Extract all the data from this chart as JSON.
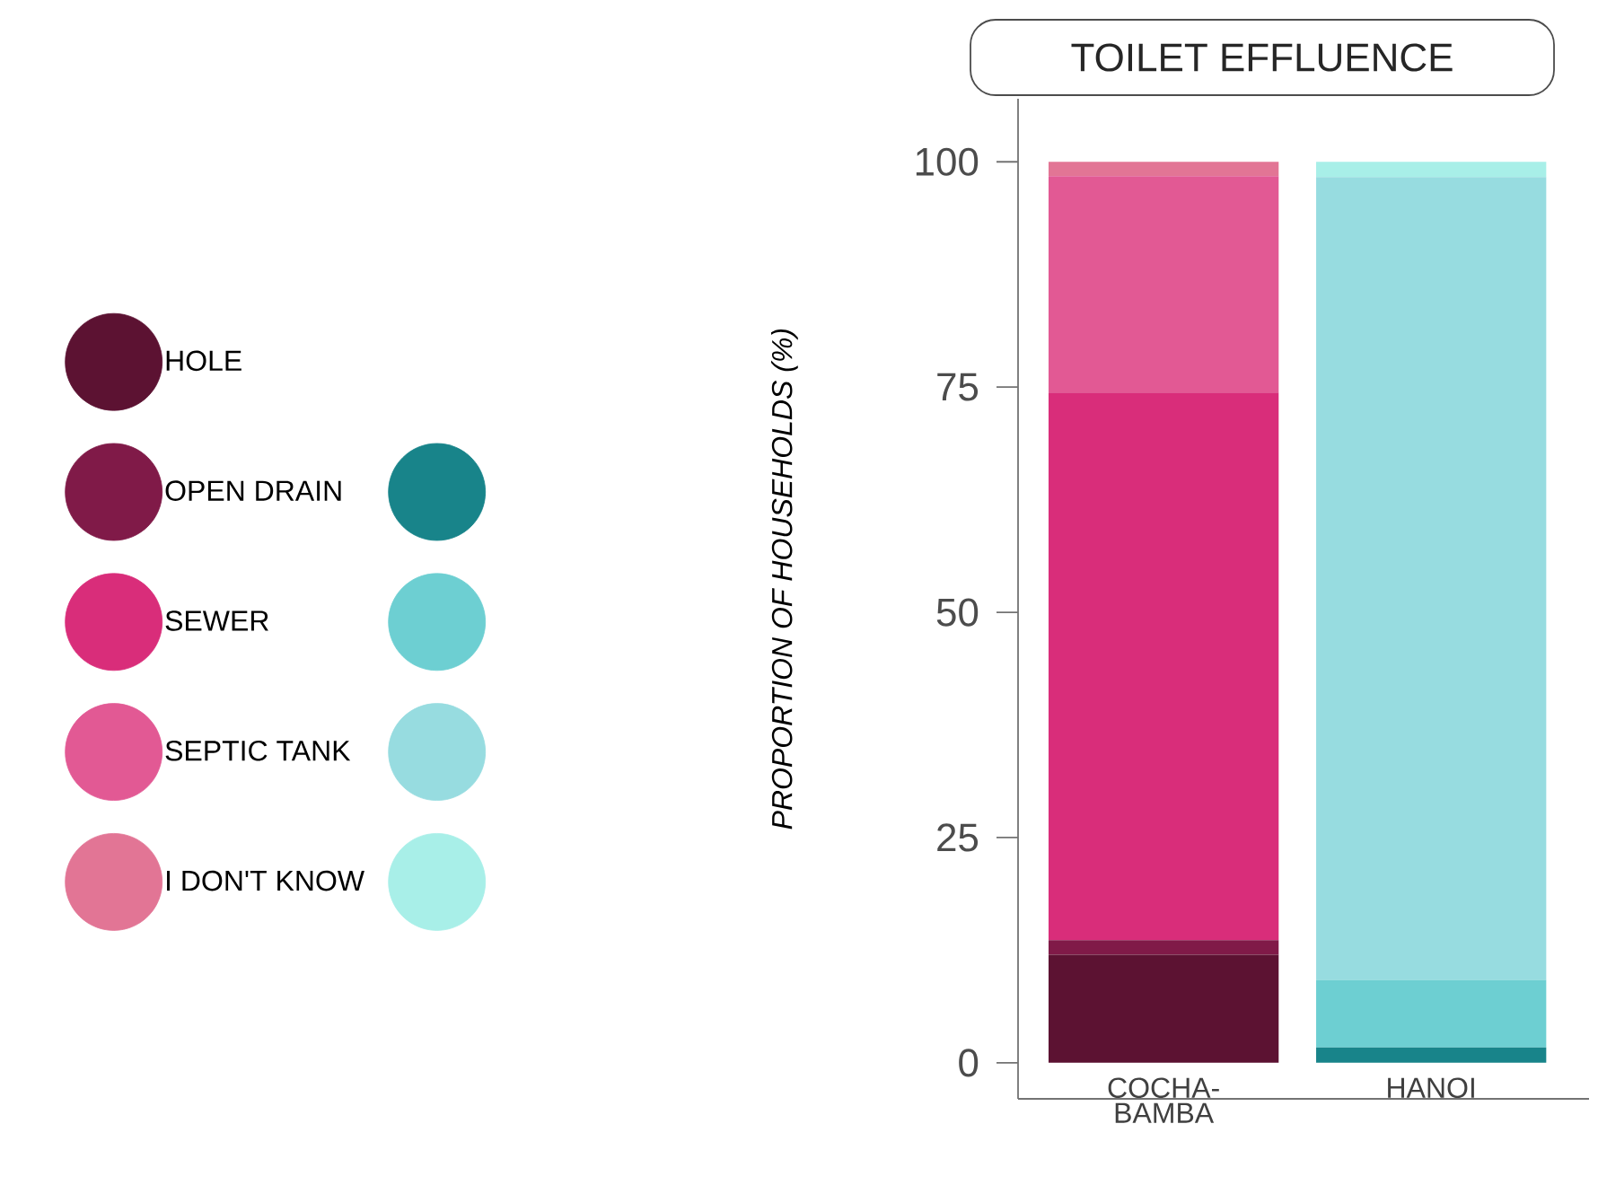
{
  "chart_data": {
    "type": "bar",
    "stacked": true,
    "title": "TOILET EFFLUENCE",
    "ylabel": "PROPORTION OF HOUSEHOLDS (%)",
    "categories": [
      "COCHA-BAMBA",
      "HANOI"
    ],
    "series": [
      {
        "name": "HOLE",
        "color": "#5c1232",
        "colors": [
          "#5c1232",
          "#127a80"
        ],
        "values": [
          12,
          null
        ]
      },
      {
        "name": "OPEN DRAIN",
        "color": "#801a48",
        "colors": [
          "#801a48",
          "#18848a"
        ],
        "values": [
          1.6,
          1.7
        ]
      },
      {
        "name": "SEWER",
        "color": "#d92d7a",
        "colors": [
          "#d92d7a",
          "#6dcfd2"
        ],
        "values": [
          60.8,
          7.5
        ]
      },
      {
        "name": "SEPTIC TANK",
        "color": "#e25994",
        "colors": [
          "#e25994",
          "#97dce0"
        ],
        "values": [
          24,
          89.1
        ]
      },
      {
        "name": "I DON'T KNOW",
        "color": "#e27595",
        "colors": [
          "#e27595",
          "#a8efe8"
        ],
        "values": [
          1.6,
          1.7
        ]
      }
    ],
    "ylim": [
      -4,
      107
    ],
    "yticks": [
      0,
      25,
      50,
      75,
      100
    ],
    "grid": false,
    "legend": "left"
  }
}
